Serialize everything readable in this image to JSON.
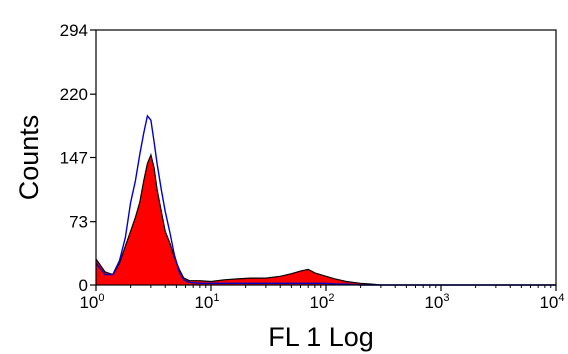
{
  "chart_data": {
    "type": "area",
    "title": "",
    "xlabel": "FL 1 Log",
    "ylabel": "Counts",
    "x_scale": "log",
    "xlim": [
      1,
      10000
    ],
    "ylim": [
      0,
      294
    ],
    "x_ticks": [
      {
        "value": 1,
        "base": "10",
        "exp": "0"
      },
      {
        "value": 10,
        "base": "10",
        "exp": "1"
      },
      {
        "value": 100,
        "base": "10",
        "exp": "2"
      },
      {
        "value": 1000,
        "base": "10",
        "exp": "3"
      },
      {
        "value": 10000,
        "base": "10",
        "exp": "4"
      }
    ],
    "y_ticks": [
      0,
      73,
      147,
      220,
      294
    ],
    "grid": false,
    "legend": "none",
    "series": [
      {
        "style": "filled",
        "fill_color": "#ff0000",
        "line_color": "#000000",
        "x": [
          1.0,
          1.2,
          1.4,
          1.6,
          1.8,
          2.0,
          2.2,
          2.4,
          2.6,
          2.8,
          3.0,
          3.2,
          3.4,
          3.7,
          4.0,
          4.4,
          4.8,
          5.3,
          5.8,
          6.5,
          8.0,
          10.0,
          13.0,
          17.0,
          22.0,
          30.0,
          40.0,
          50.0,
          60.0,
          70.0,
          80.0,
          100.0,
          120.0,
          150.0,
          200.0,
          250.0,
          300.0,
          10000.0
        ],
        "y": [
          30,
          15,
          12,
          25,
          45,
          62,
          78,
          95,
          120,
          140,
          150,
          135,
          110,
          85,
          62,
          48,
          32,
          18,
          8,
          5,
          5,
          4,
          6,
          7,
          8,
          8,
          10,
          13,
          16,
          18,
          14,
          10,
          7,
          4,
          2,
          1,
          0,
          0
        ]
      },
      {
        "style": "line",
        "line_color": "#0000cc",
        "x": [
          1.0,
          1.2,
          1.4,
          1.6,
          1.8,
          2.0,
          2.2,
          2.4,
          2.6,
          2.8,
          3.0,
          3.2,
          3.4,
          3.7,
          4.0,
          4.4,
          4.8,
          5.3,
          5.8,
          6.5,
          8.0,
          10.0,
          13.0,
          17.0,
          22.0,
          30.0,
          40.0,
          50.0,
          60.0,
          70.0,
          80.0,
          100.0,
          120.0,
          150.0,
          200.0,
          250.0,
          300.0,
          10000.0
        ],
        "y": [
          25,
          12,
          12,
          28,
          55,
          95,
          120,
          150,
          175,
          195,
          190,
          165,
          140,
          110,
          85,
          60,
          35,
          15,
          6,
          3,
          2,
          2,
          2,
          2,
          2,
          2,
          2,
          2,
          2,
          2,
          2,
          2,
          1,
          1,
          0,
          0,
          0,
          0
        ]
      }
    ]
  }
}
